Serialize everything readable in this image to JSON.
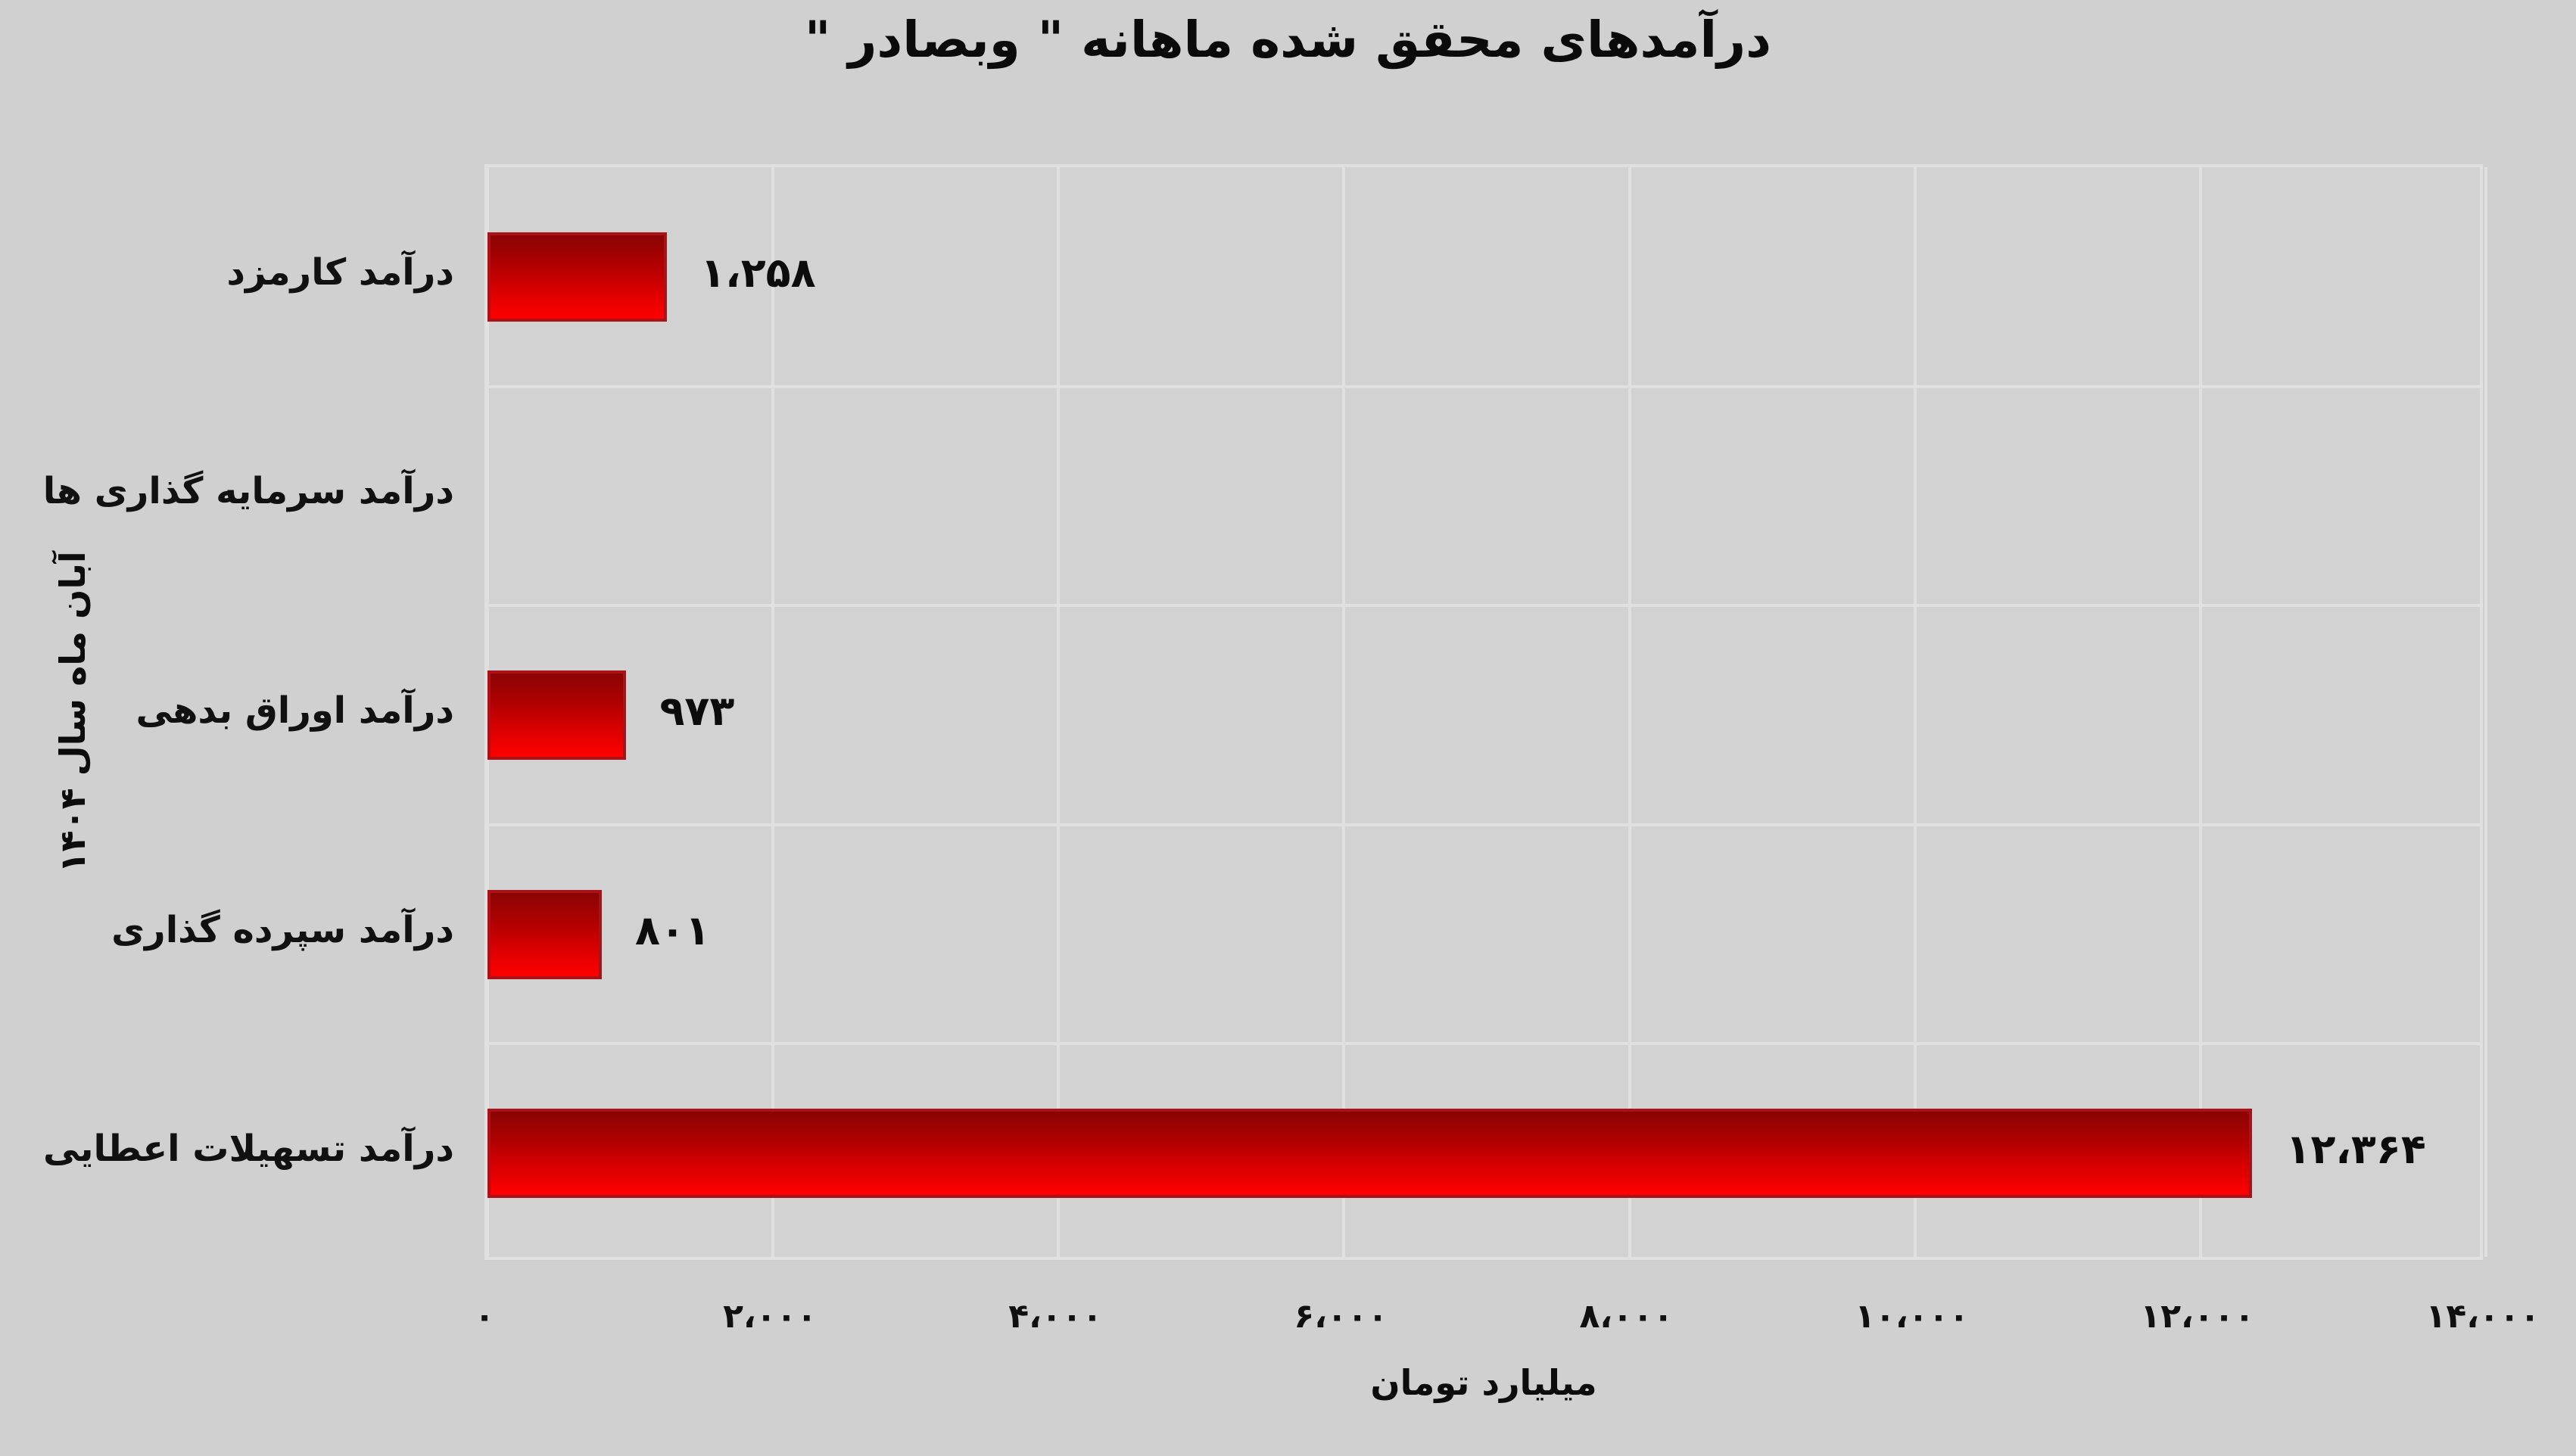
{
  "title": "درآمدهای محقق شده ماهانه \" وبصادر \"",
  "chart_data": {
    "type": "bar",
    "orientation": "horizontal",
    "title": "درآمدهای محقق شده ماهانه \" وبصادر \"",
    "categories": [
      "درآمد کارمزد",
      "درآمد سرمایه گذاری ها",
      "درآمد اوراق بدهی",
      "درآمد سپرده گذاری",
      "درآمد تسهیلات اعطایی"
    ],
    "values": [
      1258,
      0,
      973,
      801,
      12364
    ],
    "value_labels": [
      "۱،۲۵۸",
      "",
      "۹۷۳",
      "۸۰۱",
      "۱۲،۳۶۴"
    ],
    "xlabel": "میلیارد تومان",
    "ylabel": "آبان ماه سال ۱۴۰۴",
    "xlim": [
      0,
      14000
    ],
    "xticks": [
      0,
      2000,
      4000,
      6000,
      8000,
      10000,
      12000,
      14000
    ],
    "xticklabels": [
      "۰",
      "۲،۰۰۰",
      "۴،۰۰۰",
      "۶،۰۰۰",
      "۸،۰۰۰",
      "۱۰،۰۰۰",
      "۱۲،۰۰۰",
      "۱۴،۰۰۰"
    ],
    "grid": true,
    "legend": false,
    "colors": {
      "background": "#d0d0d0",
      "plot_background": "#d2d2d2",
      "gridline": "#e0e0e0",
      "bar_gradient_top": "#8a0404",
      "bar_gradient_bottom": "#ff0000",
      "bar_border": "#aa1218",
      "text": "#0c0c0c"
    }
  }
}
